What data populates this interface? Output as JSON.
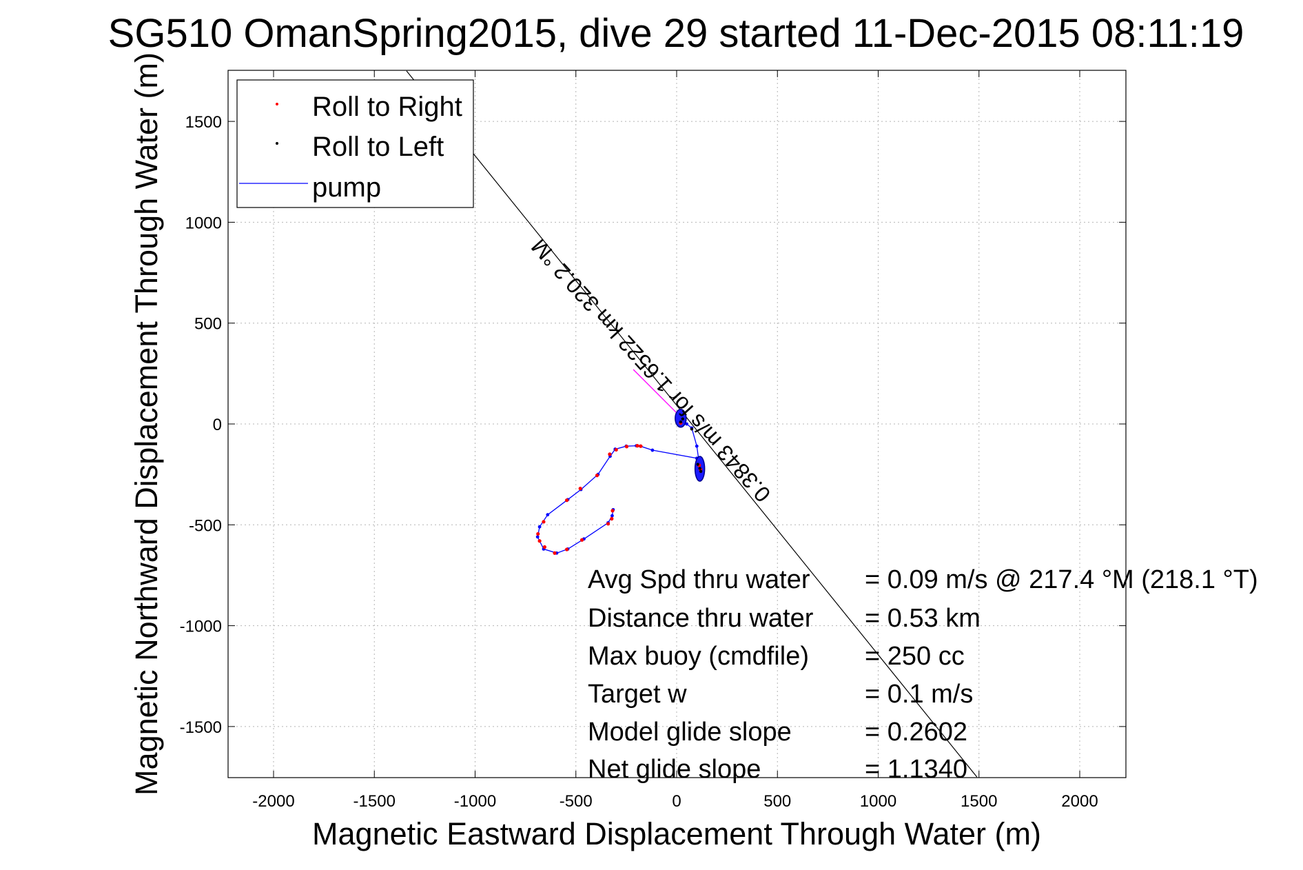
{
  "chart_data": {
    "type": "line",
    "title": "SG510 OmanSpring2015, dive 29 started 11-Dec-2015 08:11:19",
    "xlabel": "Magnetic Eastward Displacement Through Water (m)",
    "ylabel": "Magnetic Northward Displacement Through Water (m)",
    "xlim": [
      -2225,
      2225
    ],
    "ylim": [
      -1750,
      1750
    ],
    "xticks": [
      -2000,
      -1500,
      -1000,
      -500,
      0,
      500,
      1000,
      1500,
      2000
    ],
    "yticks": [
      -1500,
      -1000,
      -500,
      0,
      500,
      1000,
      1500
    ],
    "grid": true,
    "legend_position": "top-left",
    "legend": [
      {
        "label": "Roll to Right",
        "marker": "dot",
        "color": "#ff0000"
      },
      {
        "label": "Roll to Left",
        "marker": "dot",
        "color": "#000000"
      },
      {
        "label": "pump",
        "marker": "line",
        "color": "#0000ff"
      }
    ],
    "series": [
      {
        "name": "pump",
        "color": "#0000ff",
        "x": [
          -315,
          -320,
          -340,
          -460,
          -540,
          -595,
          -660,
          -690,
          -680,
          -640,
          -540,
          -475,
          -390,
          -330,
          -305,
          -250,
          -200,
          -180,
          -120,
          100,
          110,
          115,
          120,
          118,
          100,
          75,
          50,
          30,
          20
        ],
        "y": [
          -425,
          -455,
          -490,
          -570,
          -620,
          -640,
          -620,
          -560,
          -510,
          -450,
          -375,
          -325,
          -250,
          -160,
          -125,
          -110,
          -108,
          -110,
          -130,
          -170,
          -195,
          -215,
          -230,
          -240,
          -110,
          -20,
          0,
          20,
          35
        ]
      },
      {
        "name": "Roll to Right",
        "color": "#ff0000",
        "x": [
          -318,
          -322,
          -340,
          -470,
          -545,
          -605,
          -655,
          -680,
          -688,
          -660,
          -545,
          -478,
          -395,
          -332,
          -300,
          -248,
          -195,
          -178,
          20,
          112,
          118
        ],
        "y": [
          -430,
          -470,
          -495,
          -575,
          -622,
          -640,
          -610,
          -580,
          -545,
          -485,
          -378,
          -320,
          -255,
          -150,
          -128,
          -112,
          -108,
          -110,
          5,
          -205,
          -225
        ]
      },
      {
        "name": "Roll to Left",
        "color": "#000000",
        "x": [
          20,
          30,
          105,
          115,
          120,
          75
        ],
        "y": [
          10,
          25,
          -200,
          -220,
          -235,
          -25
        ]
      },
      {
        "name": "",
        "color": "#ff00ff",
        "x": [
          20,
          -215
        ],
        "y": [
          35,
          270
        ]
      },
      {
        "name": "",
        "color": "#000000",
        "x": [
          -1340,
          1490
        ],
        "y": [
          1750,
          -1750
        ]
      }
    ],
    "current_annotation": "0.3843 m/s for 1.6522 km 320.2 °M",
    "info": [
      {
        "label": "Avg Spd thru water",
        "value": "=  0.09 m/s @ 217.4 °M (218.1 °T)"
      },
      {
        "label": "Distance thru water",
        "value": "=  0.53 km"
      },
      {
        "label": "Max buoy (cmdfile)",
        "value": "= 250 cc"
      },
      {
        "label": "Target w",
        "value": "= 0.1 m/s"
      },
      {
        "label": "Model glide slope",
        "value": "= 0.2602"
      },
      {
        "label": "Net glide slope",
        "value": "= 1.1340"
      }
    ]
  }
}
